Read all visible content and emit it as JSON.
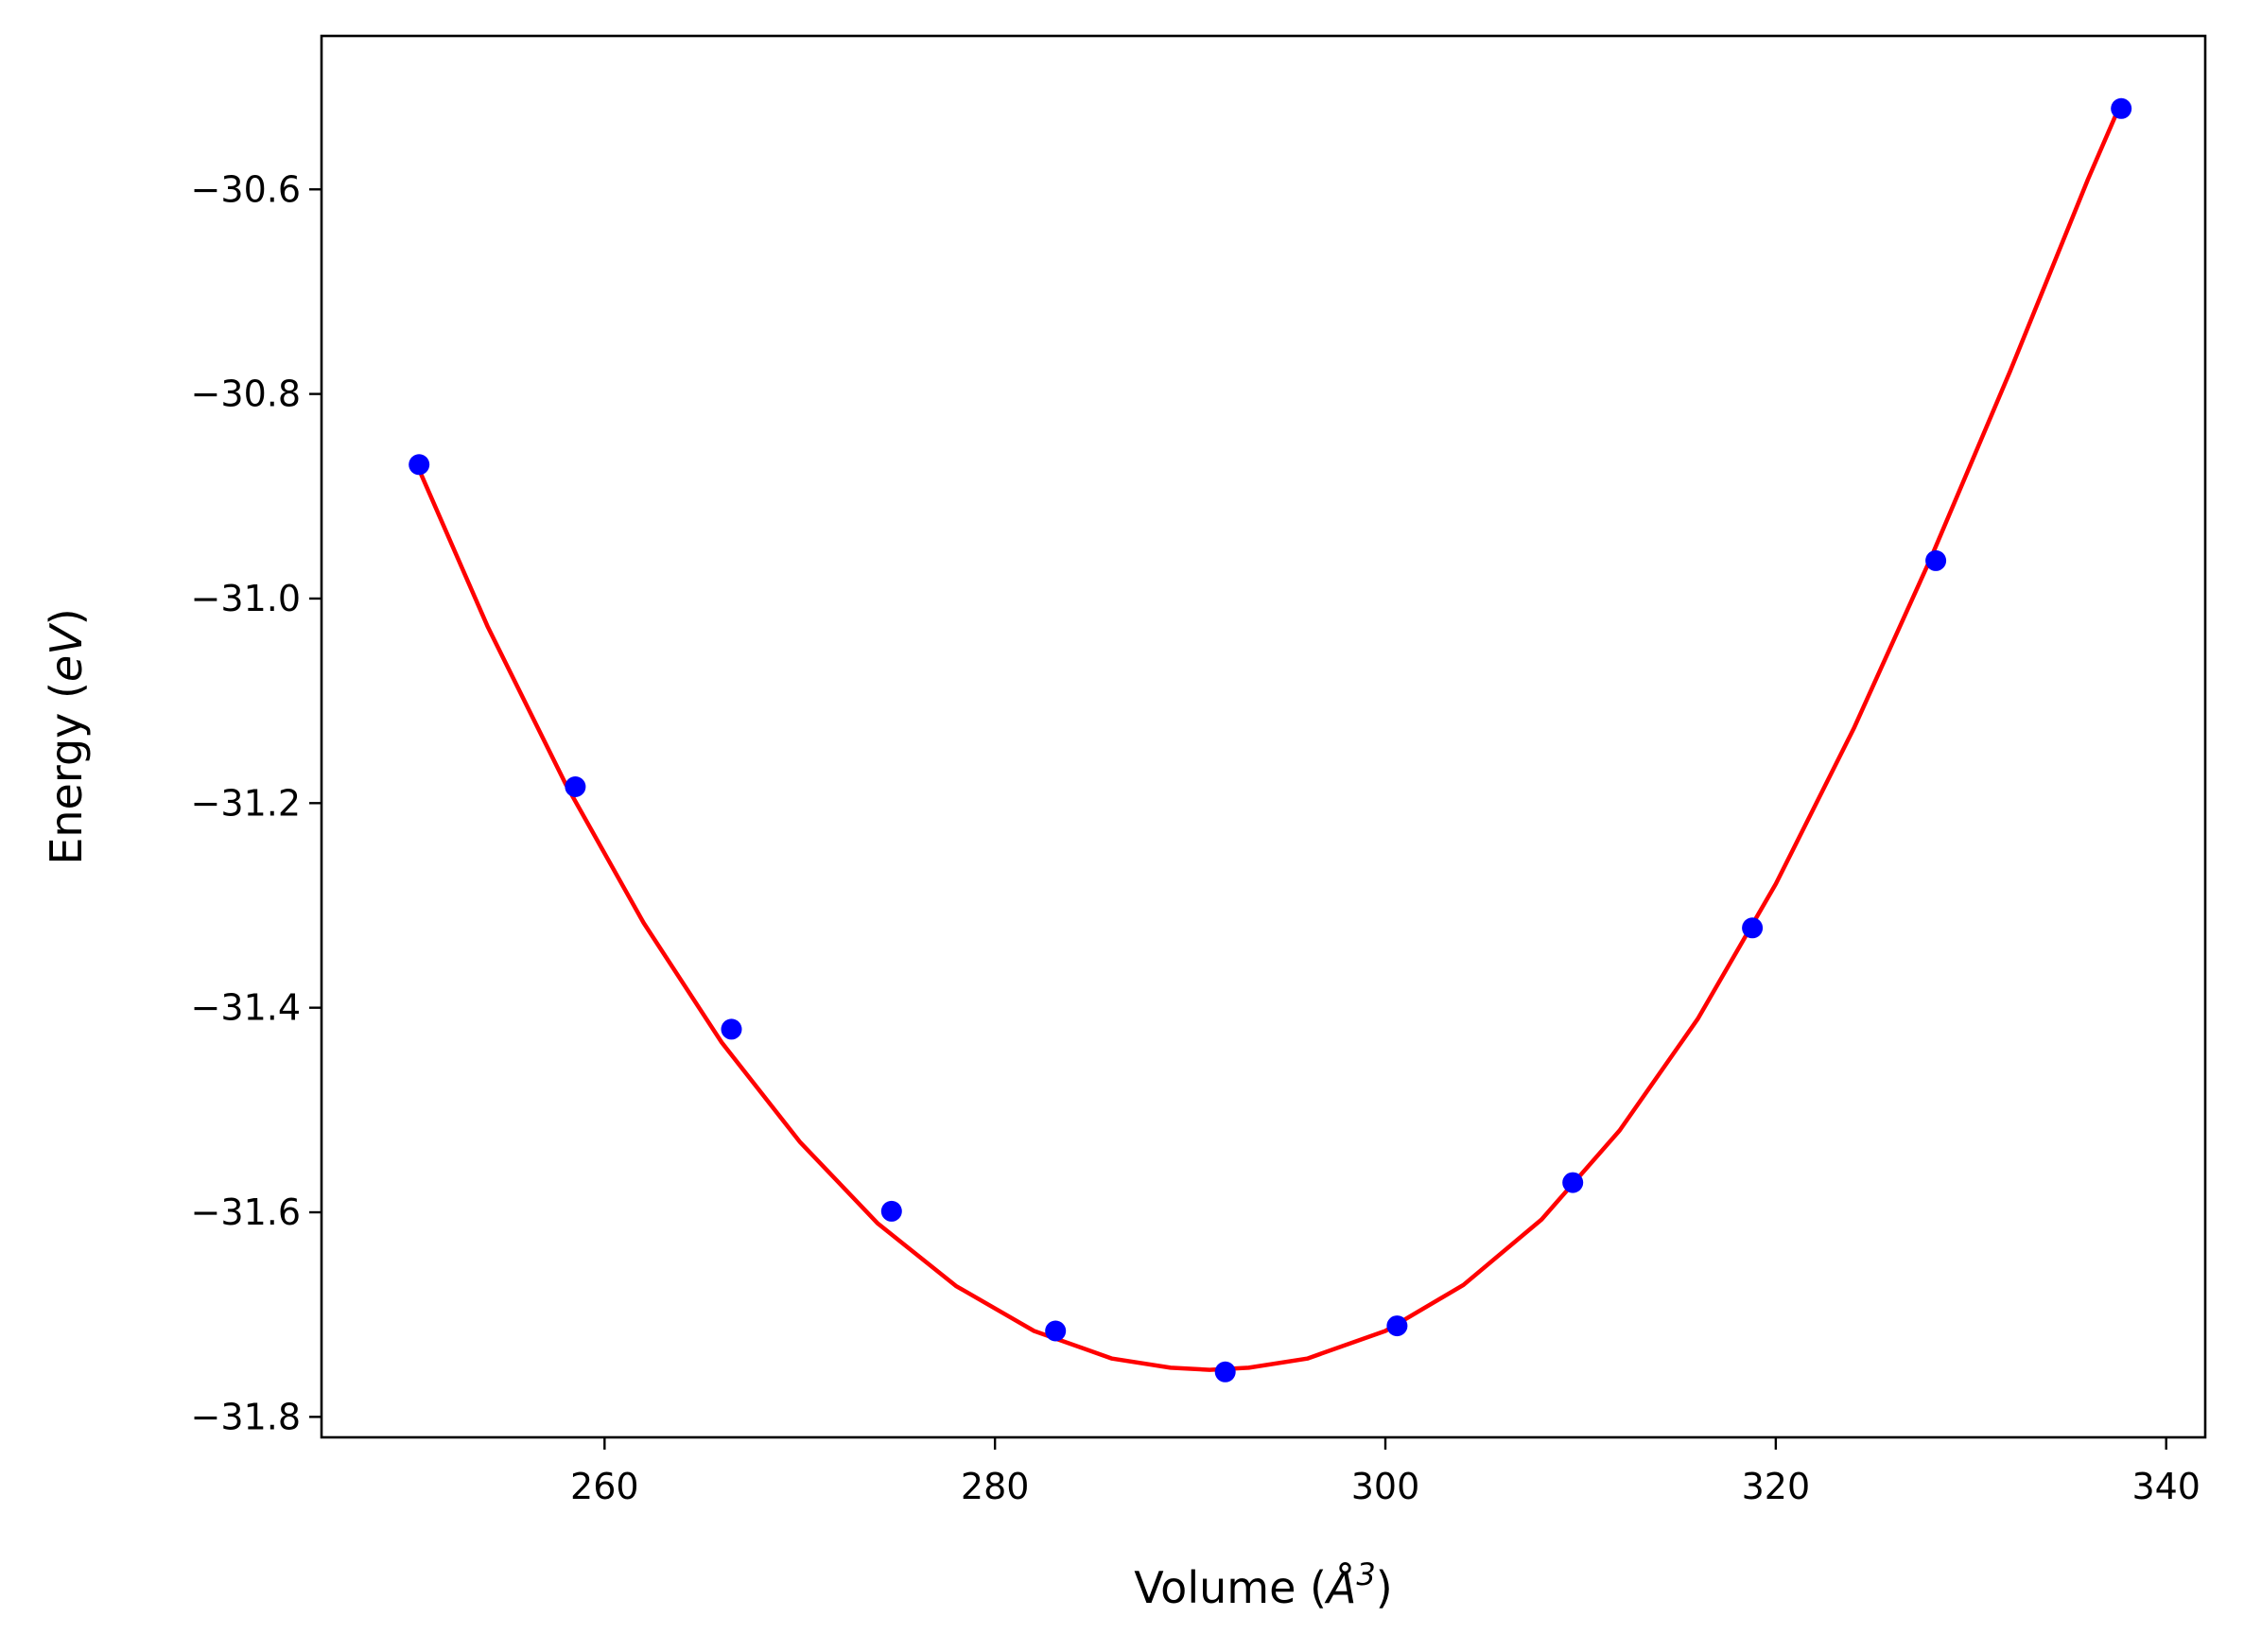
{
  "chart_data": {
    "type": "line",
    "title": "",
    "xlabel": {
      "prefix": "Volume (",
      "symbol": "Å",
      "sup": "3",
      "suffix": ")"
    },
    "ylabel": {
      "prefix": "Energy (",
      "unit": "eV",
      "suffix": ")"
    },
    "xlim": [
      245.5,
      342.0
    ],
    "ylim": [
      -31.82,
      -30.45
    ],
    "xticks": [
      260,
      280,
      300,
      320,
      340
    ],
    "yticks": [
      -31.8,
      -31.6,
      -31.4,
      -31.2,
      -31.0,
      -30.8,
      -30.6
    ],
    "xtick_labels": [
      "260",
      "280",
      "300",
      "320",
      "340"
    ],
    "ytick_labels": [
      "−31.8",
      "−31.6",
      "−31.4",
      "−31.2",
      "−31.0",
      "−30.8",
      "−30.6"
    ],
    "grid": false,
    "series": [
      {
        "kind": "scatter",
        "color": "#0000ff",
        "x": [
          250.5,
          258.5,
          266.5,
          274.7,
          283.1,
          291.8,
          300.6,
          309.6,
          318.8,
          328.2,
          337.7
        ],
        "y": [
          -30.869,
          -31.184,
          -31.421,
          -31.599,
          -31.716,
          -31.756,
          -31.711,
          -31.571,
          -31.322,
          -30.963,
          -30.521
        ]
      },
      {
        "kind": "line",
        "color": "#ff0000",
        "x": [
          250.5,
          254.0,
          258.0,
          262.0,
          266.0,
          270.0,
          274.0,
          278.0,
          282.0,
          286.0,
          289.0,
          291.0,
          293.0,
          296.0,
          300.0,
          304.0,
          308.0,
          312.0,
          316.0,
          320.0,
          324.0,
          328.0,
          332.0,
          336.0,
          337.7
        ],
        "y": [
          -30.874,
          -31.027,
          -31.181,
          -31.317,
          -31.434,
          -31.531,
          -31.611,
          -31.672,
          -31.716,
          -31.743,
          -31.752,
          -31.754,
          -31.752,
          -31.743,
          -31.716,
          -31.671,
          -31.607,
          -31.52,
          -31.411,
          -31.279,
          -31.127,
          -30.958,
          -30.778,
          -30.59,
          -30.515
        ]
      }
    ]
  }
}
